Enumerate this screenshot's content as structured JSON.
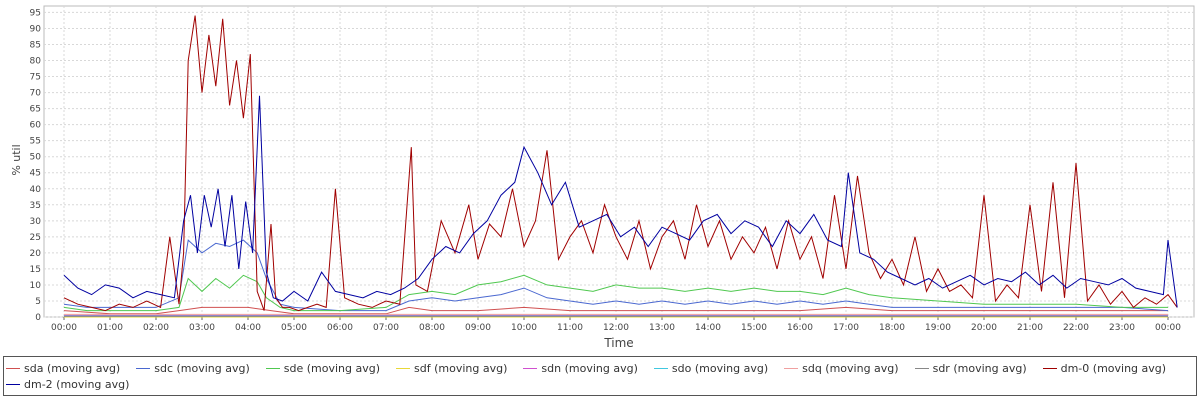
{
  "chart_data": {
    "type": "line",
    "xlabel": "Time",
    "ylabel": "% util",
    "ylim": [
      0,
      97
    ],
    "yticks": [
      0,
      5,
      10,
      15,
      20,
      25,
      30,
      35,
      40,
      45,
      50,
      55,
      60,
      65,
      70,
      75,
      80,
      85,
      90,
      95
    ],
    "x_tick_labels": [
      "00:00",
      "01:00",
      "02:00",
      "03:00",
      "04:00",
      "05:00",
      "06:00",
      "07:00",
      "08:00",
      "09:00",
      "10:00",
      "11:00",
      "12:00",
      "13:00",
      "14:00",
      "15:00",
      "16:00",
      "17:00",
      "18:00",
      "19:00",
      "20:00",
      "21:00",
      "22:00",
      "23:00",
      "00:00"
    ],
    "x_range_hours": [
      0,
      24.2
    ],
    "grid": true,
    "legend_position": "bottom",
    "series": [
      {
        "name": "sda (moving avg)",
        "color": "#d05050",
        "width": 1,
        "x": [
          0,
          1,
          2,
          2.5,
          3,
          3.5,
          4,
          4.5,
          5,
          6,
          7,
          7.5,
          8,
          9,
          10,
          11,
          12,
          13,
          14,
          15,
          16,
          17,
          18,
          19,
          20,
          21,
          22,
          23,
          24
        ],
        "y": [
          2,
          1,
          1,
          2,
          3,
          3,
          3,
          2,
          1,
          1,
          1,
          3,
          2,
          2,
          3,
          2,
          2,
          2,
          2,
          2,
          2,
          3,
          2,
          2,
          2,
          2,
          2,
          2,
          2
        ]
      },
      {
        "name": "sdc (moving avg)",
        "color": "#4a68d0",
        "width": 1,
        "x": [
          0,
          0.5,
          1,
          1.5,
          2,
          2.5,
          2.7,
          3,
          3.3,
          3.6,
          3.9,
          4.2,
          4.4,
          4.7,
          5,
          6,
          7,
          7.5,
          8,
          8.5,
          9,
          9.5,
          10,
          10.5,
          11,
          11.5,
          12,
          12.5,
          13,
          13.5,
          14,
          14.5,
          15,
          15.5,
          16,
          16.5,
          17,
          17.5,
          18,
          19,
          20,
          21,
          22,
          23,
          24
        ],
        "y": [
          4,
          3,
          3,
          3,
          3,
          6,
          24,
          20,
          23,
          22,
          24,
          20,
          12,
          4,
          3,
          2,
          2,
          5,
          6,
          5,
          6,
          7,
          9,
          6,
          5,
          4,
          5,
          4,
          5,
          4,
          5,
          4,
          5,
          4,
          5,
          4,
          5,
          4,
          3,
          3,
          3,
          3,
          3,
          3,
          2
        ]
      },
      {
        "name": "sde (moving avg)",
        "color": "#50c850",
        "width": 1,
        "x": [
          0,
          0.5,
          1,
          1.5,
          2,
          2.5,
          2.7,
          3,
          3.3,
          3.6,
          3.9,
          4.2,
          4.4,
          4.7,
          5,
          6,
          7,
          7.5,
          8,
          8.5,
          9,
          9.5,
          10,
          10.5,
          11,
          11.5,
          12,
          12.5,
          13,
          13.5,
          14,
          14.5,
          15,
          15.5,
          16,
          16.5,
          17,
          17.5,
          18,
          19,
          20,
          21,
          22,
          23,
          24
        ],
        "y": [
          3,
          2,
          2,
          2,
          2,
          3,
          12,
          8,
          12,
          9,
          13,
          11,
          6,
          3,
          2,
          2,
          3,
          7,
          8,
          7,
          10,
          11,
          13,
          10,
          9,
          8,
          10,
          9,
          9,
          8,
          9,
          8,
          9,
          8,
          8,
          7,
          9,
          7,
          6,
          5,
          4,
          4,
          4,
          3,
          3
        ]
      },
      {
        "name": "sdf (moving avg)",
        "color": "#e8d838",
        "width": 1,
        "x": [
          0,
          24
        ],
        "y": [
          0,
          0
        ]
      },
      {
        "name": "sdn (moving avg)",
        "color": "#d050d0",
        "width": 1,
        "x": [
          0,
          24
        ],
        "y": [
          0.5,
          0.5
        ]
      },
      {
        "name": "sdo (moving avg)",
        "color": "#40c8e0",
        "width": 1,
        "x": [
          0,
          24
        ],
        "y": [
          0.3,
          0.3
        ]
      },
      {
        "name": "sdq (moving avg)",
        "color": "#f0a0a0",
        "width": 1,
        "x": [
          0,
          24
        ],
        "y": [
          0.8,
          0.8
        ]
      },
      {
        "name": "sdr (moving avg)",
        "color": "#888888",
        "width": 1,
        "x": [
          0,
          24
        ],
        "y": [
          0.2,
          0.2
        ]
      },
      {
        "name": "dm-0 (moving avg)",
        "color": "#a00000",
        "width": 1,
        "x": [
          0,
          0.3,
          0.6,
          0.9,
          1.2,
          1.5,
          1.8,
          2.1,
          2.3,
          2.5,
          2.6,
          2.7,
          2.85,
          3.0,
          3.15,
          3.3,
          3.45,
          3.6,
          3.75,
          3.9,
          4.05,
          4.2,
          4.35,
          4.5,
          4.6,
          4.75,
          4.9,
          5.1,
          5.3,
          5.5,
          5.7,
          5.9,
          6.1,
          6.4,
          6.7,
          7.0,
          7.3,
          7.55,
          7.65,
          7.9,
          8.2,
          8.5,
          8.8,
          9.0,
          9.25,
          9.5,
          9.75,
          10.0,
          10.25,
          10.5,
          10.75,
          11.0,
          11.25,
          11.5,
          11.75,
          12.0,
          12.25,
          12.5,
          12.75,
          13.0,
          13.25,
          13.5,
          13.75,
          14.0,
          14.25,
          14.5,
          14.75,
          15.0,
          15.25,
          15.5,
          15.75,
          16.0,
          16.25,
          16.5,
          16.75,
          17.0,
          17.25,
          17.5,
          17.75,
          18.0,
          18.25,
          18.5,
          18.75,
          19.0,
          19.25,
          19.5,
          19.75,
          20.0,
          20.25,
          20.5,
          20.75,
          21.0,
          21.25,
          21.5,
          21.75,
          22.0,
          22.25,
          22.5,
          22.75,
          23.0,
          23.25,
          23.5,
          23.75,
          24.0,
          24.2
        ],
        "y": [
          6,
          4,
          3,
          2,
          4,
          3,
          5,
          3,
          25,
          4,
          20,
          80,
          94,
          70,
          88,
          72,
          93,
          66,
          80,
          62,
          82,
          8,
          2,
          29,
          6,
          3,
          3,
          2,
          3,
          4,
          3,
          40,
          6,
          4,
          3,
          5,
          4,
          53,
          10,
          8,
          30,
          20,
          35,
          18,
          29,
          25,
          40,
          22,
          30,
          52,
          18,
          25,
          30,
          20,
          35,
          25,
          18,
          30,
          15,
          25,
          30,
          18,
          35,
          22,
          30,
          18,
          25,
          20,
          28,
          15,
          30,
          18,
          25,
          12,
          38,
          15,
          44,
          20,
          12,
          18,
          10,
          25,
          8,
          15,
          8,
          10,
          6,
          38,
          5,
          10,
          6,
          35,
          8,
          42,
          6,
          48,
          5,
          10,
          4,
          8,
          3,
          6,
          4,
          7,
          3
        ]
      },
      {
        "name": "dm-2 (moving avg)",
        "color": "#0000a0",
        "width": 1,
        "x": [
          0,
          0.3,
          0.6,
          0.9,
          1.2,
          1.5,
          1.8,
          2.1,
          2.4,
          2.6,
          2.75,
          2.9,
          3.05,
          3.2,
          3.35,
          3.5,
          3.65,
          3.8,
          3.95,
          4.1,
          4.25,
          4.4,
          4.55,
          4.75,
          5.0,
          5.3,
          5.6,
          5.9,
          6.2,
          6.5,
          6.8,
          7.1,
          7.4,
          7.7,
          8.0,
          8.3,
          8.6,
          8.9,
          9.2,
          9.5,
          9.8,
          10.0,
          10.3,
          10.6,
          10.9,
          11.2,
          11.5,
          11.8,
          12.1,
          12.4,
          12.7,
          13.0,
          13.3,
          13.6,
          13.9,
          14.2,
          14.5,
          14.8,
          15.1,
          15.4,
          15.7,
          16.0,
          16.3,
          16.6,
          16.9,
          17.05,
          17.3,
          17.6,
          17.9,
          18.2,
          18.5,
          18.8,
          19.1,
          19.4,
          19.7,
          20.0,
          20.3,
          20.6,
          20.9,
          21.2,
          21.5,
          21.8,
          22.1,
          22.4,
          22.7,
          23.0,
          23.3,
          23.6,
          23.9,
          24.0,
          24.2
        ],
        "y": [
          13,
          9,
          7,
          10,
          9,
          6,
          8,
          7,
          6,
          30,
          38,
          20,
          38,
          28,
          40,
          22,
          38,
          15,
          36,
          20,
          69,
          14,
          6,
          5,
          8,
          5,
          14,
          8,
          7,
          6,
          8,
          7,
          9,
          12,
          18,
          22,
          20,
          26,
          30,
          38,
          42,
          53,
          45,
          35,
          42,
          28,
          30,
          32,
          25,
          28,
          22,
          28,
          26,
          24,
          30,
          32,
          26,
          30,
          28,
          22,
          30,
          26,
          32,
          24,
          22,
          45,
          20,
          18,
          14,
          12,
          10,
          12,
          9,
          11,
          13,
          10,
          12,
          11,
          14,
          10,
          13,
          9,
          12,
          11,
          10,
          12,
          9,
          8,
          7,
          24,
          3
        ]
      }
    ]
  }
}
